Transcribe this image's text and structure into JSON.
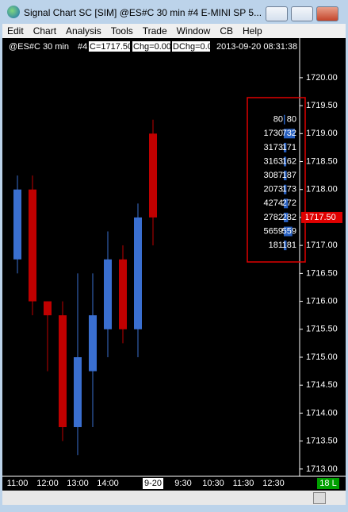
{
  "window": {
    "title": "Signal Chart  SC [SIM] @ES#C  30 min   #4  E-MINI SP 5...",
    "menu": [
      "Edit",
      "Chart",
      "Analysis",
      "Tools",
      "Trade",
      "Window",
      "CB",
      "Help"
    ],
    "info": [
      "@ES#C  30 min",
      "#4",
      "C=1717.50",
      "Chg=0.00",
      "DChg=0.00",
      "2013-09-20  08:31:38"
    ],
    "status_label": "18 L"
  },
  "chart_data": {
    "type": "candlestick",
    "categories": [
      "11:00",
      null,
      "12:00",
      null,
      "13:00",
      null,
      "14:00",
      null,
      null,
      "9-20",
      null,
      "9:30",
      null,
      "10:30",
      null,
      "11:30",
      null,
      "12:30"
    ],
    "open": [
      1716.75,
      1718.0,
      1716.0,
      1715.75,
      1713.75,
      1714.75,
      1715.5,
      1716.75,
      1715.5,
      1719.0,
      null,
      null,
      null,
      null,
      null,
      null,
      null,
      null
    ],
    "high": [
      1718.25,
      1718.25,
      1716.0,
      1716.0,
      1716.5,
      1716.5,
      1717.25,
      1717.0,
      1717.75,
      1719.25,
      null,
      null,
      null,
      null,
      null,
      null,
      null,
      null
    ],
    "low": [
      1716.5,
      1715.75,
      1714.75,
      1713.5,
      1713.25,
      1713.75,
      1715.0,
      1715.25,
      1715.0,
      1717.0,
      null,
      null,
      null,
      null,
      null,
      null,
      null,
      null
    ],
    "close": [
      1718.0,
      1716.0,
      1715.75,
      1713.75,
      1715.0,
      1715.75,
      1716.75,
      1715.5,
      1717.5,
      1717.5,
      null,
      null,
      null,
      null,
      null,
      null,
      null,
      null
    ],
    "up_color": "#3a6fd0",
    "down_color": "#c00000",
    "ylim": [
      1712.87,
      1720.68
    ],
    "yticks": [
      {
        "value": 1713,
        "label": "1713.00"
      },
      {
        "value": 1713.5,
        "label": "1713.50"
      },
      {
        "value": 1714,
        "label": "1714.00"
      },
      {
        "value": 1714.5,
        "label": "1714.50"
      },
      {
        "value": 1715,
        "label": "1715.00"
      },
      {
        "value": 1715.5,
        "label": "1715.50"
      },
      {
        "value": 1716,
        "label": "1716.00"
      },
      {
        "value": 1716.5,
        "label": "1716.50"
      },
      {
        "value": 1717,
        "label": "1717.00"
      },
      {
        "value": 1717.5,
        "label": "1717.50"
      },
      {
        "value": 1718,
        "label": "1718.00"
      },
      {
        "value": 1718.5,
        "label": "1718.50"
      },
      {
        "value": 1719,
        "label": "1719.00"
      },
      {
        "value": 1719.5,
        "label": "1719.50"
      },
      {
        "value": 1720,
        "label": "1720.00"
      }
    ],
    "price_label": {
      "value": 1717.5,
      "label": "1717.50"
    },
    "profile": {
      "prices": [
        1719.25,
        1719.0,
        1718.75,
        1718.5,
        1718.25,
        1718.0,
        1717.75,
        1717.5,
        1717.25,
        1717.0
      ],
      "left": [
        80,
        1730,
        3173,
        3163,
        3087,
        2073,
        4274,
        2782,
        5659,
        181
      ],
      "right": [
        80,
        732,
        171,
        162,
        187,
        173,
        272,
        282,
        559,
        181
      ]
    }
  }
}
